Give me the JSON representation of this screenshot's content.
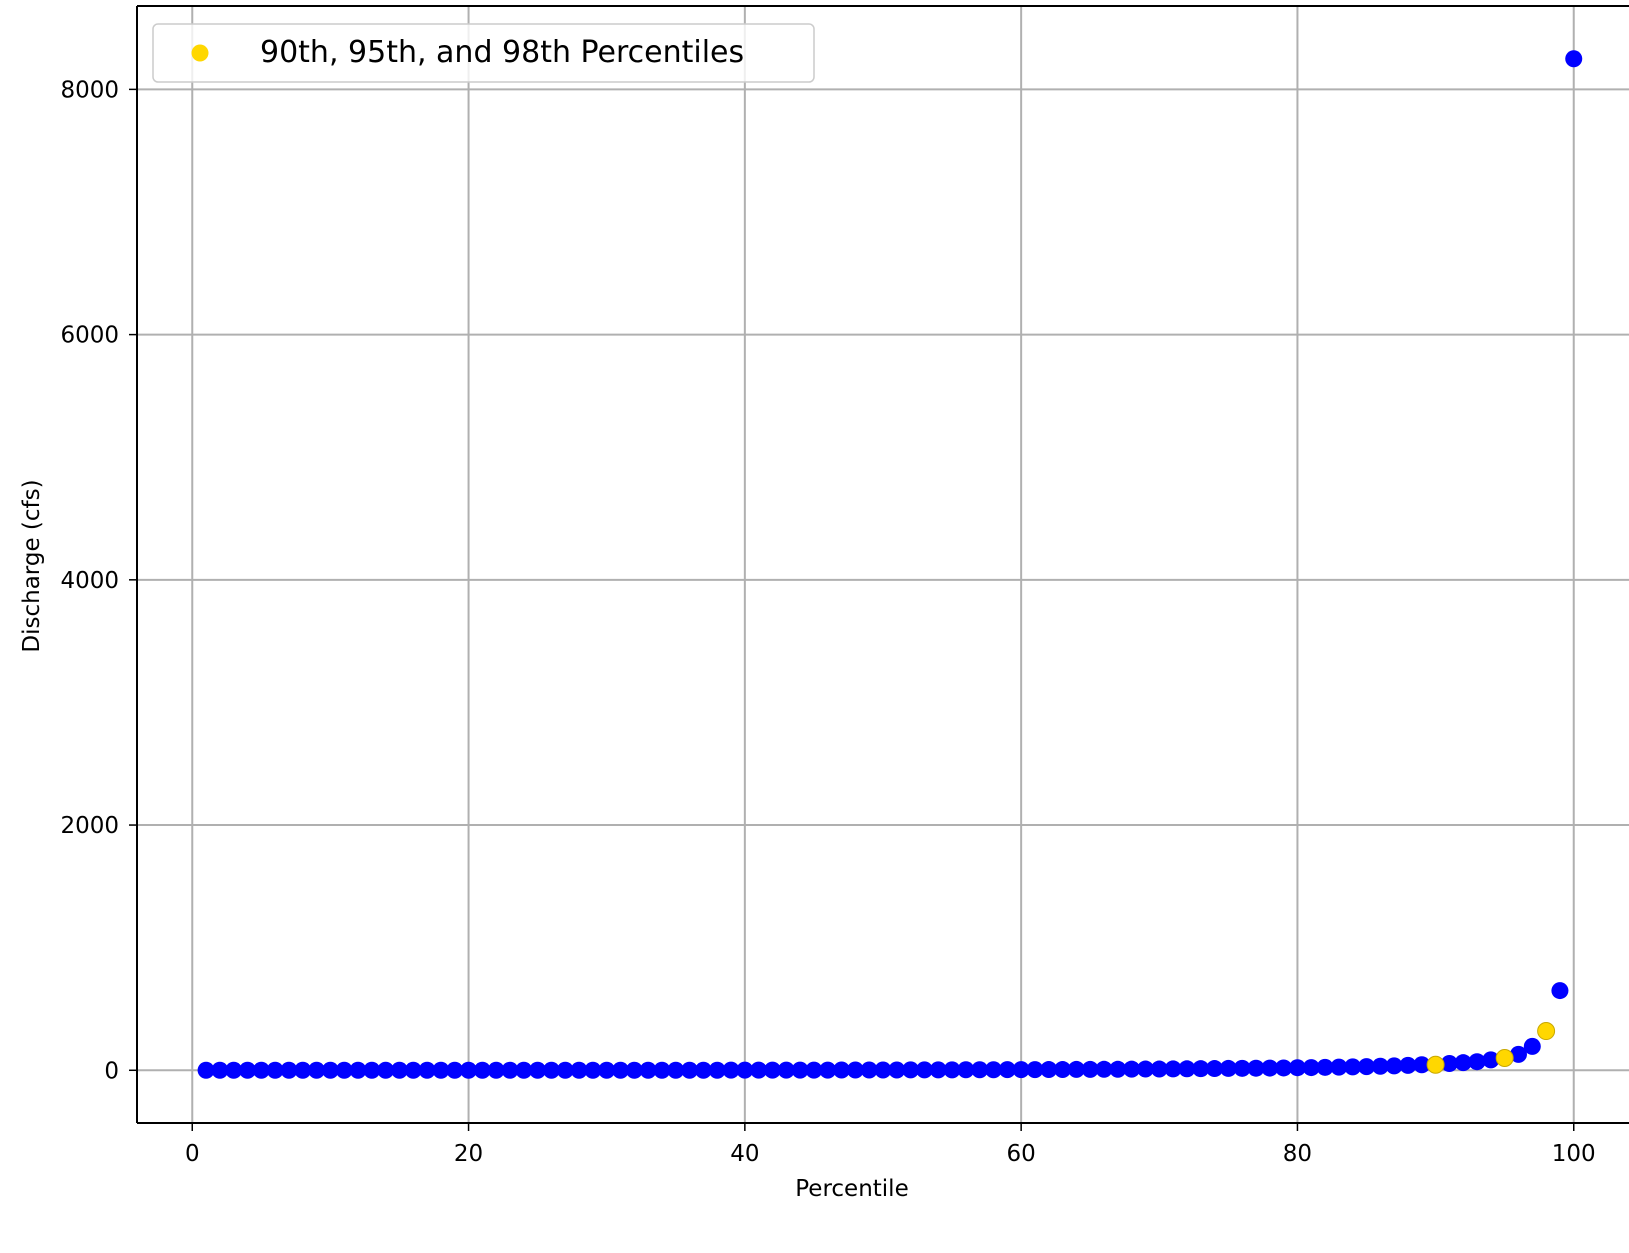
{
  "chart_data": {
    "type": "scatter",
    "title": "",
    "xlabel": "Percentile",
    "ylabel": "Discharge (cfs)",
    "xlim": [
      -4,
      104
    ],
    "ylim": [
      -430,
      8680
    ],
    "xticks": [
      0,
      20,
      40,
      60,
      80,
      100
    ],
    "yticks": [
      0,
      2000,
      4000,
      6000,
      8000
    ],
    "grid": true,
    "legend_position": "top-left",
    "colors": {
      "series": "#0000ff",
      "highlight": "#ffd700",
      "grid": "#b0b0b0",
      "axes": "#000000"
    },
    "series": [
      {
        "name": "",
        "color": "#0000ff",
        "x": [
          1,
          2,
          3,
          4,
          5,
          6,
          7,
          8,
          9,
          10,
          11,
          12,
          13,
          14,
          15,
          16,
          17,
          18,
          19,
          20,
          21,
          22,
          23,
          24,
          25,
          26,
          27,
          28,
          29,
          30,
          31,
          32,
          33,
          34,
          35,
          36,
          37,
          38,
          39,
          40,
          41,
          42,
          43,
          44,
          45,
          46,
          47,
          48,
          49,
          50,
          51,
          52,
          53,
          54,
          55,
          56,
          57,
          58,
          59,
          60,
          61,
          62,
          63,
          64,
          65,
          66,
          67,
          68,
          69,
          70,
          71,
          72,
          73,
          74,
          75,
          76,
          77,
          78,
          79,
          80,
          81,
          82,
          83,
          84,
          85,
          86,
          87,
          88,
          89,
          91,
          92,
          93,
          94,
          96,
          97,
          99,
          100
        ],
        "y": [
          0,
          0,
          0,
          0,
          0,
          0,
          0,
          0,
          0,
          0,
          0,
          0,
          0,
          0,
          0,
          0,
          0,
          0,
          0,
          0,
          0,
          0,
          0,
          0,
          0,
          0,
          0,
          0,
          0,
          0,
          0,
          0,
          0,
          0,
          0,
          0,
          0,
          0,
          1,
          1,
          1,
          1,
          1,
          1,
          1,
          1,
          2,
          2,
          2,
          2,
          2,
          3,
          3,
          3,
          3,
          4,
          4,
          4,
          5,
          5,
          5,
          6,
          6,
          7,
          7,
          8,
          8,
          9,
          10,
          10,
          11,
          12,
          13,
          14,
          15,
          16,
          17,
          18,
          19,
          21,
          22,
          24,
          26,
          28,
          30,
          33,
          36,
          40,
          45,
          55,
          62,
          70,
          85,
          130,
          195,
          650,
          8250
        ]
      },
      {
        "name": "90th, 95th, and 98th Percentiles",
        "color": "#ffd700",
        "x": [
          90,
          95,
          98
        ],
        "y": [
          45,
          100,
          320
        ]
      }
    ]
  }
}
